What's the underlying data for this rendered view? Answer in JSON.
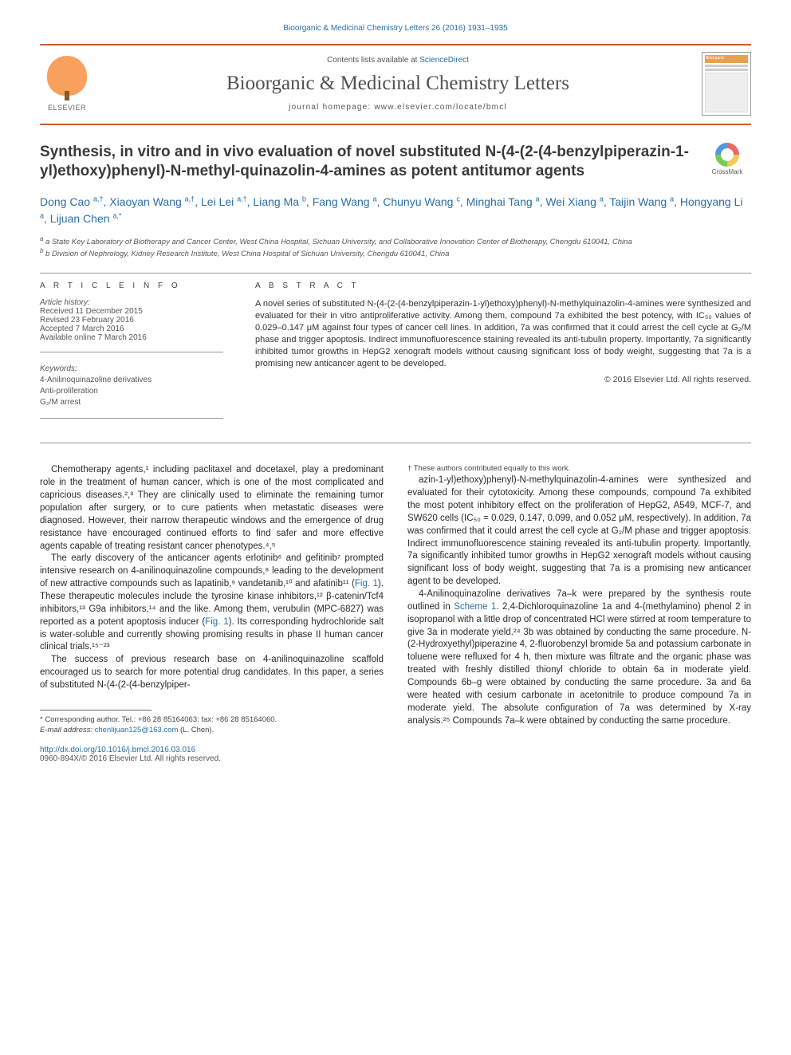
{
  "citation_header": "Bioorganic & Medicinal Chemistry Letters 26 (2016) 1931–1935",
  "head": {
    "contents_prefix": "Contents lists available at ",
    "contents_link": "ScienceDirect",
    "journal": "Bioorganic & Medicinal Chemistry Letters",
    "homepage": "journal homepage: www.elsevier.com/locate/bmcl",
    "publisher_word": "ELSEVIER"
  },
  "title": "Synthesis, in vitro and in vivo evaluation of novel substituted N-(4-(2-(4-benzylpiperazin-1-yl)ethoxy)phenyl)-N-methyl-quinazolin-4-amines as potent antitumor agents",
  "crossmark_label": "CrossMark",
  "authors_html": "Dong Cao <sup>a,†</sup>, Xiaoyan Wang <sup>a,†</sup>, Lei Lei <sup>a,†</sup>, Liang Ma <sup>b</sup>, Fang Wang <sup>a</sup>, Chunyu Wang <sup>c</sup>, Minghai Tang <sup>a</sup>, Wei Xiang <sup>a</sup>, Taijin Wang <sup>a</sup>, Hongyang Li <sup>a</sup>, Lijuan Chen <sup>a,*</sup>",
  "affiliations": [
    "a State Key Laboratory of Biotherapy and Cancer Center, West China Hospital, Sichuan University, and Collaborative Innovation Center of Biotherapy, Chengdu 610041, China",
    "b Division of Nephrology, Kidney Research Institute, West China Hospital of Sichuan University, Chengdu 610041, China"
  ],
  "info_heading": "A R T I C L E   I N F O",
  "abstract_heading": "A B S T R A C T",
  "history_label": "Article history:",
  "history": [
    "Received 11 December 2015",
    "Revised 23 February 2016",
    "Accepted 7 March 2016",
    "Available online 7 March 2016"
  ],
  "keywords_label": "Keywords:",
  "keywords": [
    "4-Anilinoquinazoline derivatives",
    "Anti-proliferation",
    "G₂/M arrest"
  ],
  "abstract": "A novel series of substituted N-(4-(2-(4-benzylpiperazin-1-yl)ethoxy)phenyl)-N-methylquinazolin-4-amines were synthesized and evaluated for their in vitro antiproliferative activity. Among them, compound 7a exhibited the best potency, with IC₅₀ values of 0.029–0.147 μM against four types of cancer cell lines. In addition, 7a was confirmed that it could arrest the cell cycle at G₂/M phase and trigger apoptosis. Indirect immunofluorescence staining revealed its anti-tubulin property. Importantly, 7a significantly inhibited tumor growths in HepG2 xenograft models without causing significant loss of body weight, suggesting that 7a is a promising new anticancer agent to be developed.",
  "copyright": "© 2016 Elsevier Ltd. All rights reserved.",
  "body": {
    "p1": "Chemotherapy agents,¹ including paclitaxel and docetaxel, play a predominant role in the treatment of human cancer, which is one of the most complicated and capricious diseases.²,³ They are clinically used to eliminate the remaining tumor population after surgery, or to cure patients when metastatic diseases were diagnosed. However, their narrow therapeutic windows and the emergence of drug resistance have encouraged continued efforts to find safer and more effective agents capable of treating resistant cancer phenotypes.⁴,⁵",
    "p2_a": "The early discovery of the anticancer agents erlotinib⁶ and gefitinib⁷ prompted intensive research on 4-anilinoquinazoline compounds,⁸ leading to the development of new attractive compounds such as lapatinib,⁹ vandetanib,¹⁰ and afatinib¹¹ (",
    "p2_fig1a": "Fig. 1",
    "p2_b": "). These therapeutic molecules include the tyrosine kinase inhibitors,¹² β-catenin/Tcf4 inhibitors,¹³ G9a inhibitors,¹⁴ and the like. Among them, verubulin (MPC-6827) was reported as a potent apoptosis inducer (",
    "p2_fig1b": "Fig. 1",
    "p2_c": "). Its corresponding hydrochloride salt is water-soluble and currently showing promising results in phase II human cancer clinical trials.¹⁵⁻²³",
    "p3": "The success of previous research base on 4-anilinoquinazoline scaffold encouraged us to search for more potential drug candidates. In this paper, a series of substituted N-(4-(2-(4-benzylpiper-",
    "p4": "azin-1-yl)ethoxy)phenyl)-N-methylquinazolin-4-amines were synthesized and evaluated for their cytotoxicity. Among these compounds, compound 7a exhibited the most potent inhibitory effect on the proliferation of HepG2, A549, MCF-7, and SW620 cells (IC₅₀ = 0.029, 0.147, 0.099, and 0.052 μM, respectively). In addition, 7a was confirmed that it could arrest the cell cycle at G₂/M phase and trigger apoptosis. Indirect immunofluorescence staining revealed its anti-tubulin property. Importantly, 7a significantly inhibited tumor growths in HepG2 xenograft models without causing significant loss of body weight, suggesting that 7a is a promising new anticancer agent to be developed.",
    "p5_a": "4-Anilinoquinazoline derivatives 7a–k were prepared by the synthesis route outlined in ",
    "p5_scheme": "Scheme 1",
    "p5_b": ". 2,4-Dichloroquinazoline 1a and 4-(methylamino) phenol 2 in isopropanol with a little drop of concentrated HCl were stirred at room temperature to give 3a in moderate yield.²⁴ 3b was obtained by conducting the same procedure. N-(2-Hydroxyethyl)piperazine 4, 2-fluorobenzyl bromide 5a and potassium carbonate in toluene were refluxed for 4 h, then mixture was filtrate and the organic phase was treated with freshly distilled thionyl chloride to obtain 6a in moderate yield. Compounds 6b–g were obtained by conducting the same procedure. 3a and 6a were heated with cesium carbonate in acetonitrile to produce compound 7a in moderate yield. The absolute configuration of 7a was determined by X-ray analysis.²⁵ Compounds 7a–k were obtained by conducting the same procedure."
  },
  "footnotes": {
    "corr": "* Corresponding author. Tel.: +86 28 85164063; fax: +86 28 85164060.",
    "email_label": "E-mail address: ",
    "email": "chenlijuan125@163.com",
    "email_suffix": " (L. Chen).",
    "equal": "† These authors contributed equally to this work."
  },
  "doi": "http://dx.doi.org/10.1016/j.bmcl.2016.03.016",
  "issn": "0960-894X/© 2016 Elsevier Ltd. All rights reserved."
}
